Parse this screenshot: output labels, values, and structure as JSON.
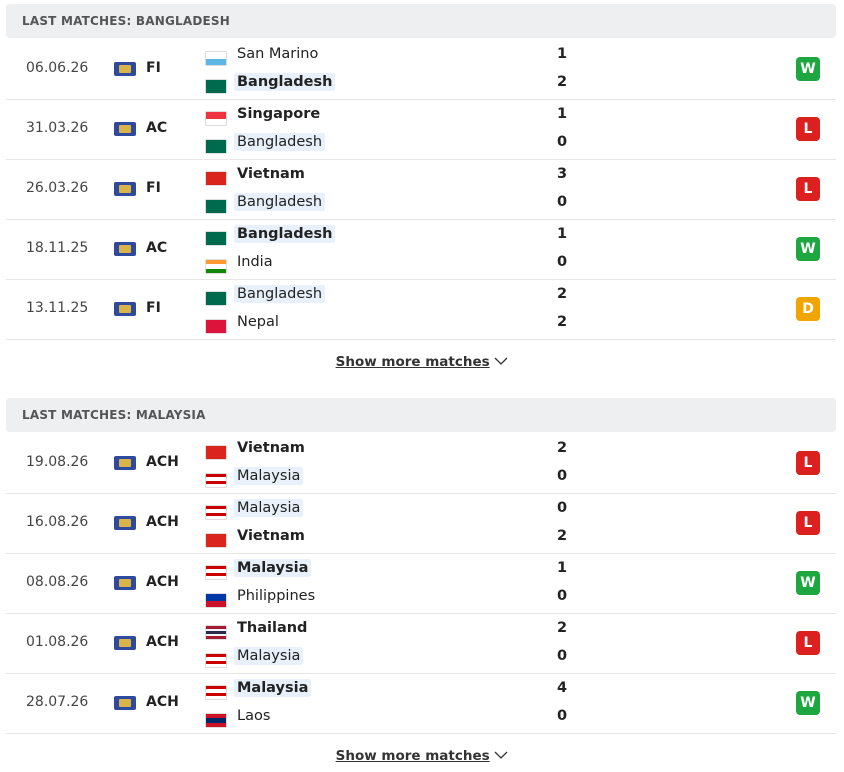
{
  "sections": [
    {
      "title": "LAST MATCHES: BANGLADESH",
      "show_more": "Show more matches",
      "matches": [
        {
          "date": "06.06.26",
          "competition": "FI",
          "home": "San Marino",
          "away": "Bangladesh",
          "home_score": 1,
          "away_score": 2,
          "result": "W",
          "highlight": "away",
          "home_flag": [
            "#ffffff",
            "#5eb6e4"
          ],
          "away_flag": [
            "#006a4e"
          ]
        },
        {
          "date": "31.03.26",
          "competition": "AC",
          "home": "Singapore",
          "away": "Bangladesh",
          "home_score": 1,
          "away_score": 0,
          "result": "L",
          "highlight": "away",
          "home_flag": [
            "#ef3340",
            "#ffffff"
          ],
          "away_flag": [
            "#006a4e"
          ]
        },
        {
          "date": "26.03.26",
          "competition": "FI",
          "home": "Vietnam",
          "away": "Bangladesh",
          "home_score": 3,
          "away_score": 0,
          "result": "L",
          "highlight": "away",
          "home_flag": [
            "#da251d"
          ],
          "away_flag": [
            "#006a4e"
          ]
        },
        {
          "date": "18.11.25",
          "competition": "AC",
          "home": "Bangladesh",
          "away": "India",
          "home_score": 1,
          "away_score": 0,
          "result": "W",
          "highlight": "home",
          "home_flag": [
            "#006a4e"
          ],
          "away_flag": [
            "#ff9933",
            "#ffffff",
            "#138808"
          ]
        },
        {
          "date": "13.11.25",
          "competition": "FI",
          "home": "Bangladesh",
          "away": "Nepal",
          "home_score": 2,
          "away_score": 2,
          "result": "D",
          "highlight": "home",
          "home_flag": [
            "#006a4e"
          ],
          "away_flag": [
            "#dc143c"
          ]
        }
      ]
    },
    {
      "title": "LAST MATCHES: MALAYSIA",
      "show_more": "Show more matches",
      "matches": [
        {
          "date": "19.08.26",
          "competition": "ACH",
          "home": "Vietnam",
          "away": "Malaysia",
          "home_score": 2,
          "away_score": 0,
          "result": "L",
          "highlight": "away",
          "home_flag": [
            "#da251d"
          ],
          "away_flag": [
            "#cc0001",
            "#ffffff",
            "#cc0001",
            "#ffffff"
          ]
        },
        {
          "date": "16.08.26",
          "competition": "ACH",
          "home": "Malaysia",
          "away": "Vietnam",
          "home_score": 0,
          "away_score": 2,
          "result": "L",
          "highlight": "home",
          "home_flag": [
            "#cc0001",
            "#ffffff",
            "#cc0001",
            "#ffffff"
          ],
          "away_flag": [
            "#da251d"
          ]
        },
        {
          "date": "08.08.26",
          "competition": "ACH",
          "home": "Malaysia",
          "away": "Philippines",
          "home_score": 1,
          "away_score": 0,
          "result": "W",
          "highlight": "home",
          "home_flag": [
            "#cc0001",
            "#ffffff",
            "#cc0001",
            "#ffffff"
          ],
          "away_flag": [
            "#0038a8",
            "#ce1126"
          ]
        },
        {
          "date": "01.08.26",
          "competition": "ACH",
          "home": "Thailand",
          "away": "Malaysia",
          "home_score": 2,
          "away_score": 0,
          "result": "L",
          "highlight": "away",
          "home_flag": [
            "#a51931",
            "#f4f5f8",
            "#2d2a4a",
            "#f4f5f8",
            "#a51931"
          ],
          "away_flag": [
            "#cc0001",
            "#ffffff",
            "#cc0001",
            "#ffffff"
          ]
        },
        {
          "date": "28.07.26",
          "competition": "ACH",
          "home": "Malaysia",
          "away": "Laos",
          "home_score": 4,
          "away_score": 0,
          "result": "W",
          "highlight": "home",
          "home_flag": [
            "#cc0001",
            "#ffffff",
            "#cc0001",
            "#ffffff"
          ],
          "away_flag": [
            "#ce1126",
            "#002868",
            "#ce1126"
          ]
        }
      ]
    }
  ]
}
